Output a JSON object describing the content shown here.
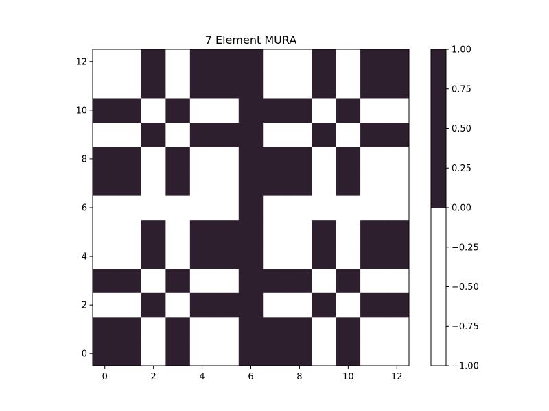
{
  "chart_data": {
    "type": "heatmap",
    "title": "7 Element MURA",
    "xlabel": "",
    "ylabel": "",
    "origin": "lower",
    "xlim": [
      -0.5,
      12.5
    ],
    "ylim": [
      -0.5,
      12.5
    ],
    "x_ticks": [
      0,
      2,
      4,
      6,
      8,
      10,
      12
    ],
    "y_ticks": [
      0,
      2,
      4,
      6,
      8,
      10,
      12
    ],
    "x_tick_labels": [
      "0",
      "2",
      "4",
      "6",
      "8",
      "10",
      "12"
    ],
    "y_tick_labels": [
      "0",
      "2",
      "4",
      "6",
      "8",
      "10",
      "12"
    ],
    "grid": false,
    "colors": {
      "high": "#2e1f2e",
      "low": "#ffffff",
      "axis": "#000000"
    },
    "colorbar": {
      "range": [
        -1.0,
        1.0
      ],
      "threshold": 0.0,
      "tick_values": [
        1.0,
        0.75,
        0.5,
        0.25,
        0.0,
        -0.25,
        -0.5,
        -0.75,
        -1.0
      ],
      "tick_labels": [
        "1.00",
        "0.75",
        "0.50",
        "0.25",
        "0.00",
        "−0.25",
        "−0.50",
        "−0.75",
        "−1.00"
      ]
    },
    "values_note": "rows listed from y=0 (bottom) to y=12 (top); 1 = dark, -1 = white",
    "values": [
      [
        1,
        1,
        -1,
        1,
        -1,
        -1,
        1,
        1,
        1,
        -1,
        1,
        -1,
        -1
      ],
      [
        1,
        1,
        -1,
        1,
        -1,
        -1,
        1,
        1,
        1,
        -1,
        1,
        -1,
        -1
      ],
      [
        -1,
        -1,
        1,
        -1,
        1,
        1,
        1,
        -1,
        -1,
        1,
        -1,
        1,
        1
      ],
      [
        1,
        1,
        -1,
        1,
        -1,
        -1,
        1,
        1,
        1,
        -1,
        1,
        -1,
        -1
      ],
      [
        -1,
        -1,
        1,
        -1,
        1,
        1,
        1,
        -1,
        -1,
        1,
        -1,
        1,
        1
      ],
      [
        -1,
        -1,
        1,
        -1,
        1,
        1,
        1,
        -1,
        -1,
        1,
        -1,
        1,
        1
      ],
      [
        -1,
        -1,
        -1,
        -1,
        -1,
        -1,
        1,
        -1,
        -1,
        -1,
        -1,
        -1,
        -1
      ],
      [
        1,
        1,
        -1,
        1,
        -1,
        -1,
        1,
        1,
        1,
        -1,
        1,
        -1,
        -1
      ],
      [
        1,
        1,
        -1,
        1,
        -1,
        -1,
        1,
        1,
        1,
        -1,
        1,
        -1,
        -1
      ],
      [
        -1,
        -1,
        1,
        -1,
        1,
        1,
        1,
        -1,
        -1,
        1,
        -1,
        1,
        1
      ],
      [
        1,
        1,
        -1,
        1,
        -1,
        -1,
        1,
        1,
        1,
        -1,
        1,
        -1,
        -1
      ],
      [
        -1,
        -1,
        1,
        -1,
        1,
        1,
        1,
        -1,
        -1,
        1,
        -1,
        1,
        1
      ],
      [
        -1,
        -1,
        1,
        -1,
        1,
        1,
        1,
        -1,
        -1,
        1,
        -1,
        1,
        1
      ]
    ]
  }
}
